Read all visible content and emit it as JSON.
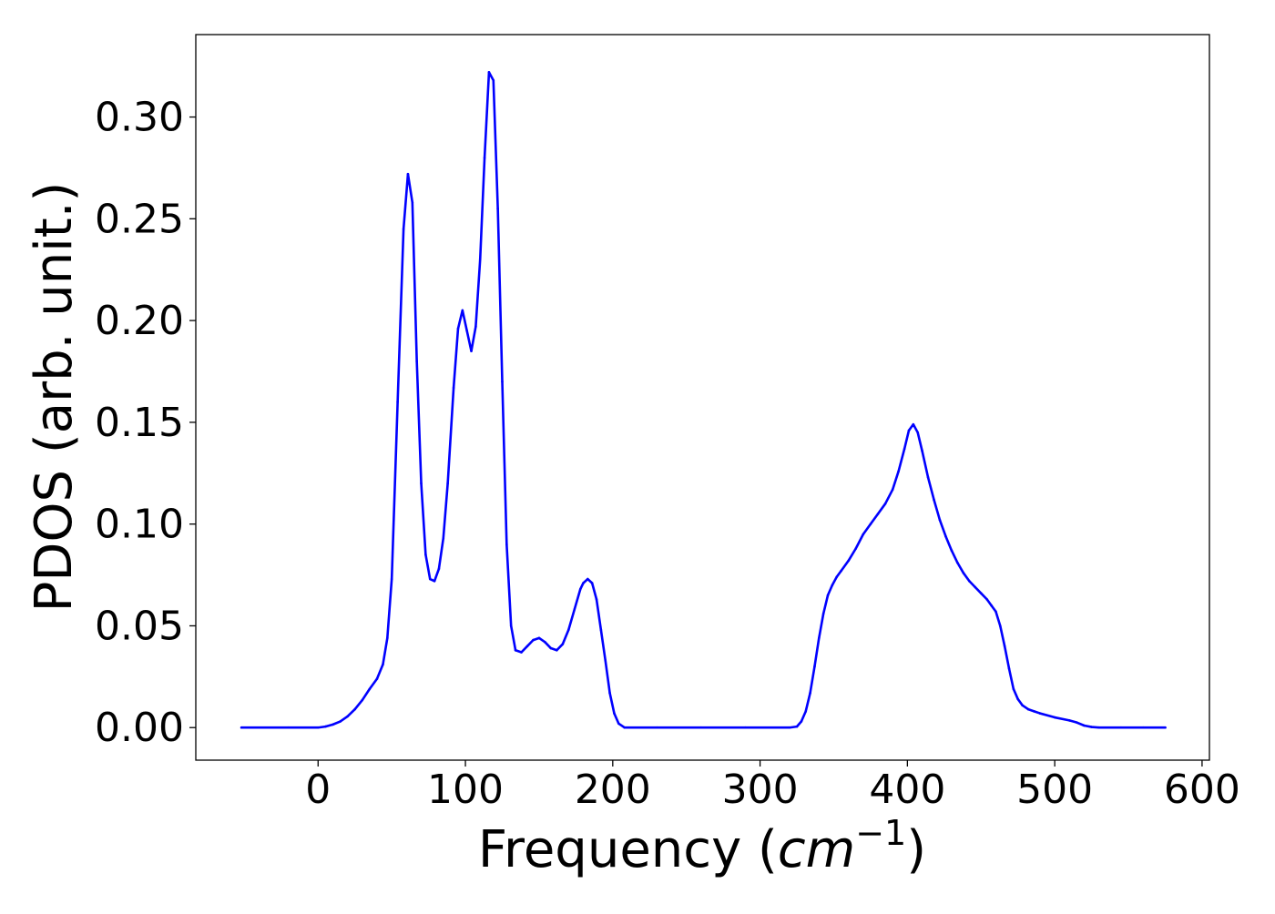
{
  "colors": {
    "line": "#0000ff",
    "axes": "#000000",
    "background": "#ffffff"
  },
  "chart_data": {
    "type": "line",
    "title": "",
    "xlabel": "Frequency (",
    "xlabel_math_base": "cm",
    "xlabel_math_exp": "−1",
    "xlabel_end": ")",
    "ylabel": "PDOS (arb. unit.)",
    "xlim": [
      -83,
      605
    ],
    "ylim": [
      -0.016,
      0.3405
    ],
    "xticks": [
      0,
      100,
      200,
      300,
      400,
      500,
      600
    ],
    "xtick_labels": [
      "0",
      "100",
      "200",
      "300",
      "400",
      "500",
      "600"
    ],
    "yticks": [
      0.0,
      0.05,
      0.1,
      0.15,
      0.2,
      0.25,
      0.3
    ],
    "ytick_labels": [
      "0.00",
      "0.05",
      "0.10",
      "0.15",
      "0.20",
      "0.25",
      "0.30"
    ],
    "grid": false,
    "legend": "none",
    "series": [
      {
        "x": [
          -52,
          -20,
          0,
          5,
          10,
          15,
          20,
          25,
          30,
          35,
          40,
          44,
          47,
          50,
          54,
          58,
          61,
          64,
          67,
          70,
          73,
          76,
          79,
          82,
          85,
          88,
          92,
          95,
          98,
          101,
          104,
          107,
          110,
          113,
          116,
          119,
          122,
          125,
          128,
          131,
          134,
          138,
          142,
          146,
          150,
          154,
          158,
          162,
          166,
          170,
          174,
          178,
          180,
          183,
          186,
          189,
          192,
          195,
          198,
          201,
          204,
          208,
          230,
          260,
          290,
          320,
          325,
          328,
          331,
          334,
          337,
          340,
          343,
          346,
          349,
          352,
          355,
          360,
          365,
          370,
          375,
          380,
          385,
          390,
          394,
          398,
          401,
          404,
          407,
          410,
          414,
          418,
          422,
          426,
          430,
          434,
          438,
          442,
          446,
          450,
          454,
          457,
          460,
          463,
          466,
          469,
          472,
          475,
          478,
          482,
          486,
          490,
          500,
          510,
          515,
          520,
          525,
          530,
          545,
          560,
          575
        ],
        "y": [
          0.0,
          0.0,
          0.0,
          0.0005,
          0.0015,
          0.003,
          0.0055,
          0.009,
          0.0135,
          0.019,
          0.024,
          0.031,
          0.044,
          0.073,
          0.16,
          0.245,
          0.272,
          0.258,
          0.18,
          0.12,
          0.085,
          0.073,
          0.072,
          0.078,
          0.093,
          0.12,
          0.167,
          0.196,
          0.205,
          0.195,
          0.185,
          0.197,
          0.23,
          0.28,
          0.322,
          0.318,
          0.255,
          0.17,
          0.09,
          0.05,
          0.038,
          0.037,
          0.04,
          0.043,
          0.044,
          0.042,
          0.039,
          0.038,
          0.041,
          0.048,
          0.058,
          0.068,
          0.071,
          0.073,
          0.071,
          0.063,
          0.048,
          0.033,
          0.017,
          0.007,
          0.002,
          0.0,
          0.0,
          0.0,
          0.0,
          0.0,
          0.0005,
          0.003,
          0.008,
          0.017,
          0.03,
          0.044,
          0.056,
          0.065,
          0.07,
          0.074,
          0.077,
          0.082,
          0.088,
          0.095,
          0.1,
          0.105,
          0.11,
          0.117,
          0.126,
          0.137,
          0.146,
          0.149,
          0.145,
          0.136,
          0.123,
          0.112,
          0.102,
          0.094,
          0.087,
          0.081,
          0.076,
          0.072,
          0.069,
          0.066,
          0.063,
          0.06,
          0.057,
          0.05,
          0.04,
          0.029,
          0.019,
          0.014,
          0.011,
          0.009,
          0.008,
          0.007,
          0.005,
          0.0035,
          0.0025,
          0.001,
          0.0003,
          0.0,
          0.0,
          0.0,
          0.0
        ]
      }
    ]
  }
}
